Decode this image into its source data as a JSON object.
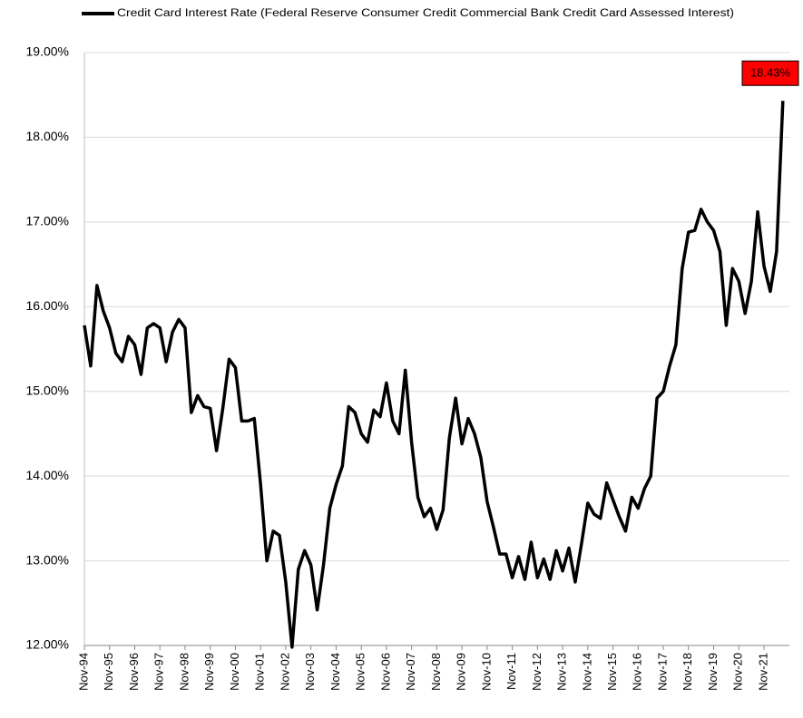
{
  "chart_data": {
    "type": "line",
    "categories": [
      "Nov-94",
      null,
      null,
      null,
      "Nov-95",
      null,
      null,
      null,
      "Nov-96",
      null,
      null,
      null,
      "Nov-97",
      null,
      null,
      null,
      "Nov-98",
      null,
      null,
      null,
      "Nov-99",
      null,
      null,
      null,
      "Nov-00",
      null,
      null,
      null,
      "Nov-01",
      null,
      null,
      null,
      "Nov-02",
      null,
      null,
      null,
      "Nov-03",
      null,
      null,
      null,
      "Nov-04",
      null,
      null,
      null,
      "Nov-05",
      null,
      null,
      null,
      "Nov-06",
      null,
      null,
      null,
      "Nov-07",
      null,
      null,
      null,
      "Nov-08",
      null,
      null,
      null,
      "Nov-09",
      null,
      null,
      null,
      "Nov-10",
      null,
      null,
      null,
      "Nov-11",
      null,
      null,
      null,
      "Nov-12",
      null,
      null,
      null,
      "Nov-13",
      null,
      null,
      null,
      "Nov-14",
      null,
      null,
      null,
      "Nov-15",
      null,
      null,
      null,
      "Nov-16",
      null,
      null,
      null,
      "Nov-17",
      null,
      null,
      null,
      "Nov-18",
      null,
      null,
      null,
      "Nov-19",
      null,
      null,
      null,
      "Nov-20",
      null,
      null,
      null,
      "Nov-21",
      null,
      null,
      null
    ],
    "series": [
      {
        "name": "Credit Card Interest Rate (Federal Reserve Consumer Credit Commercial Bank Credit Card Assessed Interest)",
        "color": "#000000",
        "values": [
          15.78,
          15.3,
          16.25,
          15.95,
          15.75,
          15.45,
          15.35,
          15.65,
          15.55,
          15.2,
          15.75,
          15.8,
          15.75,
          15.35,
          15.7,
          15.85,
          15.75,
          14.75,
          14.95,
          14.82,
          14.8,
          14.3,
          14.8,
          15.38,
          15.28,
          14.65,
          14.65,
          14.68,
          13.9,
          13.0,
          13.35,
          13.3,
          12.75,
          11.98,
          12.9,
          13.12,
          12.95,
          12.42,
          12.95,
          13.62,
          13.9,
          14.12,
          14.82,
          14.75,
          14.5,
          14.4,
          14.78,
          14.7,
          15.1,
          14.65,
          14.5,
          15.25,
          14.4,
          13.75,
          13.52,
          13.62,
          13.37,
          13.6,
          14.45,
          14.92,
          14.38,
          14.68,
          14.5,
          14.22,
          13.7,
          13.4,
          13.08,
          13.08,
          12.8,
          13.05,
          12.78,
          13.22,
          12.8,
          13.02,
          12.78,
          13.12,
          12.88,
          13.15,
          12.75,
          13.2,
          13.68,
          13.55,
          13.5,
          13.92,
          13.72,
          13.52,
          13.35,
          13.75,
          13.62,
          13.85,
          14.0,
          14.92,
          15.0,
          15.3,
          15.55,
          16.45,
          16.88,
          16.9,
          17.15,
          17.0,
          16.9,
          16.65,
          15.78,
          16.45,
          16.3,
          15.92,
          16.3,
          17.12,
          16.48,
          16.18,
          16.65,
          18.43
        ],
        "value_labels": [
          null,
          null,
          null,
          null,
          null,
          null,
          null,
          null,
          null,
          null,
          null,
          null,
          null,
          null,
          null,
          null,
          null,
          null,
          null,
          null,
          null,
          null,
          null,
          null,
          null,
          null,
          null,
          null,
          null,
          null,
          null,
          null,
          null,
          null,
          null,
          null,
          null,
          null,
          null,
          null,
          null,
          null,
          null,
          null,
          null,
          null,
          null,
          null,
          null,
          null,
          null,
          null,
          null,
          null,
          null,
          null,
          null,
          null,
          null,
          null,
          null,
          null,
          null,
          null,
          null,
          null,
          null,
          null,
          null,
          null,
          null,
          null,
          null,
          null,
          null,
          null,
          null,
          null,
          null,
          null,
          null,
          null,
          null,
          null,
          null,
          null,
          null,
          null,
          null,
          null,
          null,
          null,
          null,
          null,
          null,
          null,
          null,
          null,
          null,
          null,
          null,
          null,
          null,
          null,
          null,
          null,
          null,
          null,
          null,
          null,
          null,
          "18.43%"
        ]
      }
    ],
    "ylim": [
      12,
      19
    ],
    "yticks": [
      {
        "value": 12,
        "label": "12.00%"
      },
      {
        "value": 13,
        "label": "13.00%"
      },
      {
        "value": 14,
        "label": "14.00%"
      },
      {
        "value": 15,
        "label": "15.00%"
      },
      {
        "value": 16,
        "label": "16.00%"
      },
      {
        "value": 17,
        "label": "17.00%"
      },
      {
        "value": 18,
        "label": "18.00%"
      },
      {
        "value": 19,
        "label": "19.00%"
      }
    ],
    "grid": true,
    "legend": "top",
    "annotation_color": "#ff0000"
  }
}
